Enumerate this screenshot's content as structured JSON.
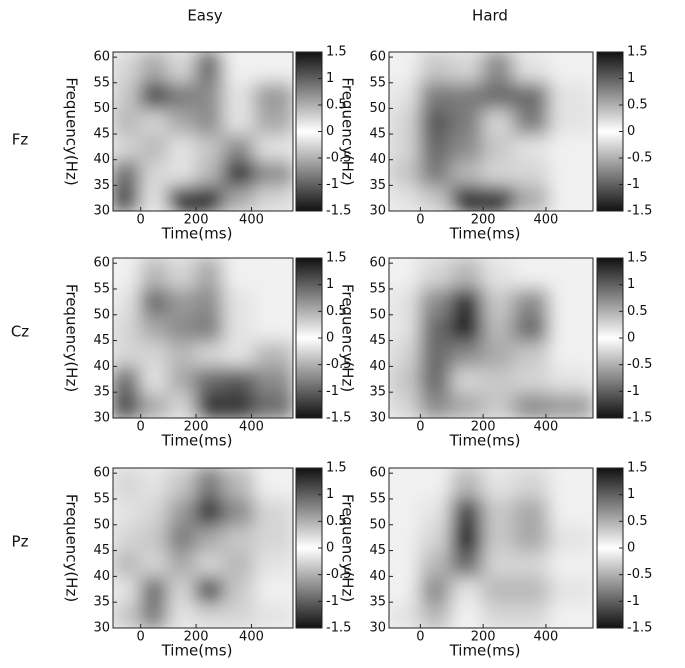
{
  "column_titles": [
    "Easy",
    "Hard"
  ],
  "row_titles": [
    "Fz",
    "Cz",
    "Pz"
  ],
  "chart_data": [
    {
      "type": "heatmap",
      "xlabel": "Time(ms)",
      "ylabel": "Frequency(Hz)",
      "xlim": [
        -100,
        550
      ],
      "ylim": [
        30,
        61
      ],
      "xticks": [
        0,
        200,
        400
      ],
      "yticks": [
        30,
        35,
        40,
        45,
        50,
        55,
        60
      ],
      "clim": [
        -1.5,
        1.5
      ],
      "cticks": [
        -1.5,
        -1,
        -0.5,
        0,
        0.5,
        1,
        1.5
      ],
      "x": [
        -50,
        50,
        150,
        250,
        350,
        475
      ],
      "y": [
        32.5,
        37.5,
        42.5,
        47.5,
        52.5,
        58
      ],
      "z": [
        [
          -1.2,
          0.2,
          -1.4,
          -1.4,
          -0.6,
          0.3
        ],
        [
          -1,
          0.3,
          0.2,
          -0.5,
          -1.3,
          -0.8
        ],
        [
          0.3,
          0.5,
          0.2,
          0.4,
          -0.8,
          0.2
        ],
        [
          0.5,
          -0.3,
          0.6,
          0.8,
          0.2,
          0.6
        ],
        [
          0.4,
          1.2,
          0.9,
          0.8,
          0.2,
          0.7
        ],
        [
          0.3,
          0.6,
          0.3,
          1,
          0.1,
          0.1
        ]
      ]
    },
    {
      "type": "heatmap",
      "xlabel": "Time(ms)",
      "ylabel": "Frequency(Hz)",
      "xlim": [
        -100,
        550
      ],
      "ylim": [
        30,
        61
      ],
      "xticks": [
        0,
        200,
        400
      ],
      "yticks": [
        30,
        35,
        40,
        45,
        50,
        55,
        60
      ],
      "clim": [
        -1.5,
        1.5
      ],
      "cticks": [
        -1.5,
        -1,
        -0.5,
        0,
        0.5,
        1,
        1.5
      ],
      "x": [
        -50,
        50,
        150,
        250,
        350,
        475
      ],
      "y": [
        32.5,
        37.5,
        42.5,
        47.5,
        52.5,
        58
      ],
      "z": [
        [
          0.2,
          0.4,
          -1.4,
          -1.4,
          -0.6,
          0.1
        ],
        [
          0.4,
          0.9,
          -0.5,
          0.3,
          0.3,
          0.1
        ],
        [
          0.3,
          1,
          0.8,
          0.4,
          0.2,
          0.1
        ],
        [
          0.3,
          1.1,
          0.9,
          0.3,
          0.9,
          0.2
        ],
        [
          0.2,
          0.9,
          0.9,
          1,
          1,
          0.2
        ],
        [
          0.1,
          0.4,
          0.3,
          0.8,
          0.2,
          0.1
        ]
      ]
    },
    {
      "type": "heatmap",
      "xlabel": "Time(ms)",
      "ylabel": "Frequency(Hz)",
      "xlim": [
        -100,
        550
      ],
      "ylim": [
        30,
        61
      ],
      "xticks": [
        0,
        200,
        400
      ],
      "yticks": [
        30,
        35,
        40,
        45,
        50,
        55,
        60
      ],
      "clim": [
        -1.5,
        1.5
      ],
      "cticks": [
        -1.5,
        -1,
        -0.5,
        0,
        0.5,
        1,
        1.5
      ],
      "x": [
        -50,
        50,
        150,
        250,
        350,
        475
      ],
      "y": [
        32.5,
        37.5,
        42.5,
        47.5,
        52.5,
        58
      ],
      "z": [
        [
          -1.2,
          -0.6,
          -0.3,
          -1.3,
          -1.3,
          -1
        ],
        [
          -1,
          0.2,
          -0.6,
          -1,
          -1.1,
          -0.8
        ],
        [
          0.3,
          0.3,
          0.5,
          0.3,
          0.2,
          0.5
        ],
        [
          0.3,
          0.6,
          0.8,
          0.9,
          0.2,
          0.1
        ],
        [
          0.2,
          1,
          0.7,
          0.8,
          0.2,
          0.1
        ],
        [
          0.1,
          0.5,
          0.3,
          0.6,
          0.1,
          0.1
        ]
      ]
    },
    {
      "type": "heatmap",
      "xlabel": "Time(ms)",
      "ylabel": "Frequency(Hz)",
      "xlim": [
        -100,
        550
      ],
      "ylim": [
        30,
        61
      ],
      "xticks": [
        0,
        200,
        400
      ],
      "yticks": [
        30,
        35,
        40,
        45,
        50,
        55,
        60
      ],
      "clim": [
        -1.5,
        1.5
      ],
      "cticks": [
        -1.5,
        -1,
        -0.5,
        0,
        0.5,
        1,
        1.5
      ],
      "x": [
        -50,
        50,
        150,
        250,
        350,
        475
      ],
      "y": [
        32.5,
        37.5,
        42.5,
        47.5,
        52.5,
        58
      ],
      "z": [
        [
          0.3,
          0.8,
          -0.6,
          -0.4,
          -0.8,
          -0.7
        ],
        [
          0.4,
          1,
          0.3,
          0.4,
          0.3,
          0.2
        ],
        [
          0.3,
          1,
          0.8,
          0.6,
          0.4,
          0.1
        ],
        [
          0.2,
          1,
          1.4,
          0.5,
          1,
          0.1
        ],
        [
          0.2,
          0.8,
          1.3,
          0.4,
          0.8,
          0.1
        ],
        [
          0.1,
          0.3,
          0.5,
          0.2,
          0.1,
          0.1
        ]
      ]
    },
    {
      "type": "heatmap",
      "xlabel": "Time(ms)",
      "ylabel": "Frequency(Hz)",
      "xlim": [
        -100,
        550
      ],
      "ylim": [
        30,
        61
      ],
      "xticks": [
        0,
        200,
        400
      ],
      "yticks": [
        30,
        35,
        40,
        45,
        50,
        55,
        60
      ],
      "clim": [
        -1.5,
        1.5
      ],
      "cticks": [
        -1.5,
        -1,
        -0.5,
        0,
        0.5,
        1,
        1.5
      ],
      "x": [
        -50,
        50,
        150,
        250,
        350,
        475
      ],
      "y": [
        32.5,
        37.5,
        42.5,
        47.5,
        52.5,
        58
      ],
      "z": [
        [
          0.4,
          -0.9,
          0.2,
          -0.3,
          0.3,
          0.2
        ],
        [
          0.2,
          -1,
          0.3,
          -1.2,
          0.4,
          0.1
        ],
        [
          0.5,
          0.3,
          0.6,
          0.3,
          0.5,
          0.2
        ],
        [
          0.3,
          0.4,
          0.9,
          0.6,
          0.4,
          0.3
        ],
        [
          0.2,
          0.3,
          0.7,
          1.3,
          0.8,
          0.3
        ],
        [
          0.3,
          0.2,
          0.4,
          0.9,
          0.5,
          0.1
        ]
      ]
    },
    {
      "type": "heatmap",
      "xlabel": "Time(ms)",
      "ylabel": "Frequency(Hz)",
      "xlim": [
        -100,
        550
      ],
      "ylim": [
        30,
        61
      ],
      "xticks": [
        0,
        200,
        400
      ],
      "yticks": [
        30,
        35,
        40,
        45,
        50,
        55,
        60
      ],
      "clim": [
        -1.5,
        1.5
      ],
      "cticks": [
        -1.5,
        -1,
        -0.5,
        0,
        0.5,
        1,
        1.5
      ],
      "x": [
        -50,
        50,
        150,
        250,
        350,
        475
      ],
      "y": [
        32.5,
        37.5,
        42.5,
        47.5,
        52.5,
        58
      ],
      "z": [
        [
          0.2,
          0.5,
          0.1,
          0.3,
          0.3,
          0.1
        ],
        [
          0.1,
          0.8,
          0.2,
          0.5,
          0.5,
          0.2
        ],
        [
          0.1,
          0.5,
          1,
          0.3,
          0.3,
          0.1
        ],
        [
          0.1,
          0.3,
          1.4,
          0.4,
          0.6,
          0.2
        ],
        [
          0.1,
          0.2,
          1.2,
          0.4,
          0.6,
          0.1
        ],
        [
          0.1,
          0.1,
          0.5,
          0.2,
          0.3,
          0.1
        ]
      ]
    }
  ]
}
